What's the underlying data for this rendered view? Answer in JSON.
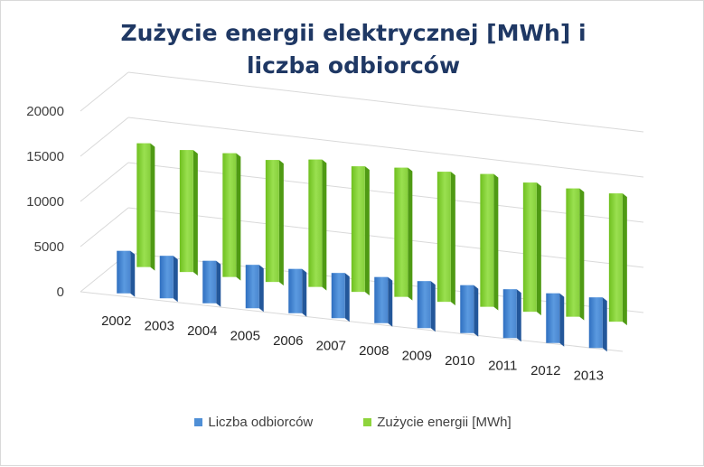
{
  "chart_data": {
    "type": "bar",
    "title": "Zużycie energii elektrycznej [MWh]  i liczba odbiorców",
    "categories": [
      "2002",
      "2003",
      "2004",
      "2005",
      "2006",
      "2007",
      "2008",
      "2009",
      "2010",
      "2011",
      "2012",
      "2013"
    ],
    "series": [
      {
        "name": "Liczba odbiorców",
        "color": "#4f8fd6",
        "values": [
          4700,
          4700,
          4700,
          4800,
          4900,
          5000,
          5100,
          5200,
          5300,
          5400,
          5500,
          5600
        ]
      },
      {
        "name": "Zużycie energii [MWh]",
        "color": "#8ed43c",
        "values": [
          13700,
          13500,
          13700,
          13500,
          14100,
          13900,
          14300,
          14400,
          14700,
          14300,
          14200,
          14200
        ]
      }
    ],
    "ylim": [
      0,
      20000
    ],
    "yticks": [
      "0",
      "5000",
      "10000",
      "15000",
      "20000"
    ],
    "grid": true,
    "legend_position": "bottom",
    "style": "3d-column"
  }
}
